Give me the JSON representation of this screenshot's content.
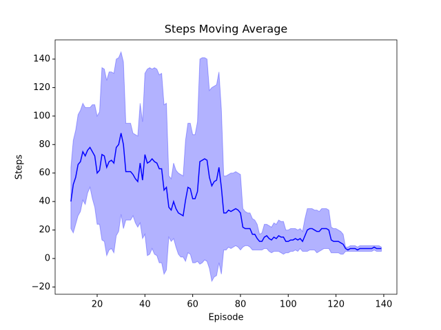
{
  "chart_data": {
    "type": "line-band",
    "title": "Steps Moving Average",
    "x_label": "Episode",
    "y_label": "Steps",
    "x": [
      9,
      10,
      11,
      12,
      13,
      14,
      15,
      16,
      17,
      18,
      19,
      20,
      21,
      22,
      23,
      24,
      25,
      26,
      27,
      28,
      29,
      30,
      31,
      32,
      33,
      34,
      35,
      36,
      37,
      38,
      39,
      40,
      41,
      42,
      43,
      44,
      45,
      46,
      47,
      48,
      49,
      50,
      51,
      52,
      53,
      54,
      55,
      56,
      57,
      58,
      59,
      60,
      61,
      62,
      63,
      64,
      65,
      66,
      67,
      68,
      69,
      70,
      71,
      72,
      73,
      74,
      75,
      76,
      77,
      78,
      79,
      80,
      81,
      82,
      83,
      84,
      85,
      86,
      87,
      88,
      89,
      90,
      91,
      92,
      93,
      94,
      95,
      96,
      97,
      98,
      99,
      100,
      101,
      102,
      103,
      104,
      105,
      106,
      107,
      108,
      109,
      110,
      111,
      112,
      113,
      114,
      115,
      116,
      117,
      118,
      119,
      120,
      121,
      122,
      123,
      124,
      125,
      126,
      127,
      128,
      129,
      130,
      131,
      132,
      133,
      134,
      135,
      136,
      137,
      138,
      139
    ],
    "line": {
      "color": "#0000ff",
      "values": [
        40,
        52,
        57,
        66,
        68,
        75,
        72,
        76,
        78,
        75,
        72,
        60,
        62,
        73,
        72,
        64,
        68,
        69,
        67,
        78,
        80,
        88,
        80,
        61,
        61,
        61,
        59,
        56,
        54,
        67,
        55,
        73,
        67,
        68,
        70,
        68,
        67,
        63,
        63,
        48,
        50,
        36,
        34,
        40,
        35,
        32,
        31,
        30,
        41,
        50,
        49,
        42,
        42,
        47,
        68,
        69,
        70,
        69,
        57,
        51,
        54,
        55,
        64,
        50,
        32,
        32,
        34,
        33,
        34,
        35,
        34,
        32,
        22,
        21,
        21,
        21,
        17,
        17,
        14,
        12,
        12,
        15,
        16,
        14,
        13,
        15,
        14,
        16,
        15,
        15,
        12,
        12,
        13,
        13,
        14,
        13,
        14,
        12,
        16,
        20,
        21,
        21,
        20,
        19,
        19,
        21,
        21,
        21,
        20,
        13,
        12,
        12,
        12,
        11,
        10,
        7,
        6,
        7,
        7,
        7,
        6,
        7,
        7,
        7,
        7,
        7,
        7,
        8,
        7,
        7,
        7
      ]
    },
    "band": {
      "color": "#0000ff",
      "alpha": 0.3,
      "upper": [
        64,
        83,
        90,
        101,
        104,
        109,
        106,
        106,
        106,
        108,
        108,
        100,
        103,
        134,
        133,
        125,
        131,
        131,
        130,
        140,
        141,
        145,
        138,
        95,
        95,
        95,
        88,
        87,
        86,
        109,
        96,
        130,
        133,
        134,
        133,
        134,
        133,
        129,
        130,
        108,
        109,
        58,
        56,
        67,
        62,
        60,
        59,
        58,
        83,
        95,
        95,
        87,
        87,
        96,
        140,
        141,
        141,
        140,
        118,
        120,
        121,
        122,
        131,
        105,
        58,
        58,
        59,
        60,
        60,
        61,
        60,
        59,
        35,
        33,
        32,
        32,
        28,
        27,
        24,
        17,
        18,
        24,
        24,
        23,
        22,
        25,
        24,
        27,
        26,
        26,
        20,
        20,
        21,
        21,
        21,
        20,
        21,
        19,
        28,
        35,
        35,
        35,
        34,
        34,
        33,
        35,
        35,
        35,
        34,
        22,
        21,
        21,
        20,
        19,
        17,
        8,
        8,
        9,
        9,
        9,
        8,
        9,
        9,
        9,
        9,
        9,
        9,
        9,
        9,
        9,
        8
      ],
      "lower": [
        21,
        18,
        24,
        30,
        33,
        41,
        38,
        46,
        50,
        42,
        36,
        24,
        24,
        13,
        12,
        2,
        6,
        7,
        4,
        16,
        19,
        31,
        21,
        27,
        27,
        27,
        30,
        25,
        22,
        25,
        14,
        17,
        2,
        3,
        7,
        3,
        2,
        -3,
        -3,
        -11,
        -8,
        15,
        12,
        14,
        8,
        3,
        1,
        1,
        -2,
        4,
        3,
        -3,
        -3,
        -2,
        -4,
        -3,
        -1,
        -2,
        -7,
        -16,
        -13,
        -12,
        -3,
        -11,
        6,
        6,
        8,
        7,
        8,
        9,
        8,
        6,
        8,
        9,
        9,
        8,
        6,
        6,
        6,
        6,
        6,
        7,
        7,
        5,
        4,
        5,
        5,
        5,
        4,
        3,
        4,
        4,
        5,
        5,
        6,
        5,
        7,
        5,
        5,
        5,
        6,
        6,
        6,
        4,
        5,
        6,
        7,
        7,
        7,
        4,
        4,
        4,
        4,
        3,
        3,
        5,
        5,
        5,
        5,
        5,
        5,
        5,
        5,
        5,
        5,
        5,
        5,
        6,
        5,
        5,
        5
      ]
    },
    "xlim": [
      2.4,
      145.5
    ],
    "ylim": [
      -25.1,
      153.5
    ],
    "xticks": [
      20,
      40,
      60,
      80,
      100,
      120,
      140
    ],
    "yticks": [
      {
        "value": -20,
        "label": "−20"
      },
      0,
      20,
      40,
      60,
      80,
      100,
      120,
      140
    ]
  }
}
